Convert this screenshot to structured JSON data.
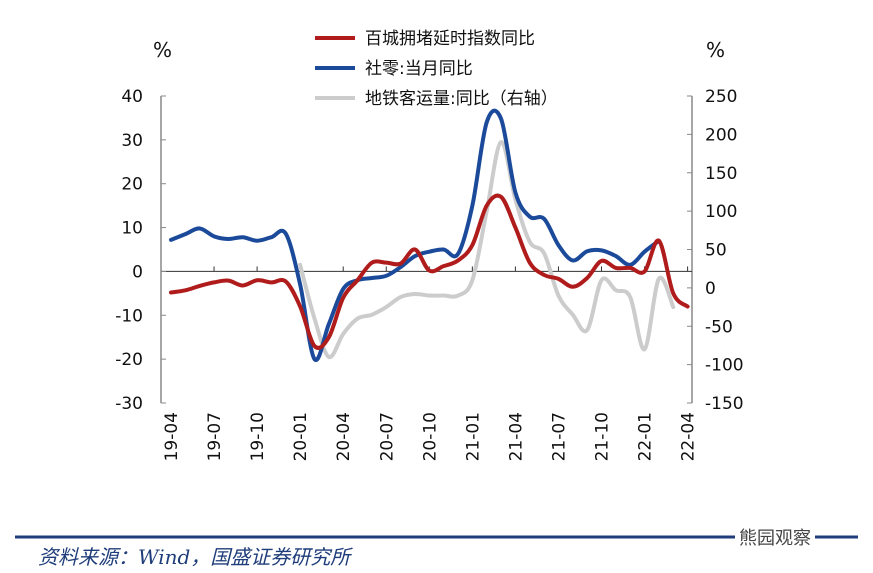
{
  "chart_data": {
    "type": "line",
    "left_unit": "%",
    "right_unit": "%",
    "left_ylim": [
      -30,
      40
    ],
    "left_ticks": [
      40,
      30,
      20,
      10,
      0,
      -10,
      -20,
      -30
    ],
    "right_ylim": [
      -150,
      250
    ],
    "right_ticks": [
      250,
      200,
      150,
      100,
      50,
      0,
      -50,
      -100,
      -150
    ],
    "x_ticks": [
      "19-04",
      "19-07",
      "19-10",
      "20-01",
      "20-04",
      "20-07",
      "20-10",
      "21-01",
      "21-04",
      "21-07",
      "21-10",
      "22-01",
      "22-04"
    ],
    "months_count": 37,
    "series": [
      {
        "name": "百城拥堵延时指数同比",
        "axis": "left",
        "color": "#b01c1c",
        "values": [
          -4.8,
          -4.3,
          -3.3,
          -2.5,
          -2.1,
          -3.2,
          -2,
          -2.5,
          -2.3,
          -8,
          -17,
          -15,
          -6,
          -2,
          2,
          2,
          1.8,
          5,
          0.2,
          1.2,
          2.5,
          6,
          15,
          17,
          10,
          2,
          -0.8,
          -1.7,
          -3.5,
          -1.5,
          2.4,
          0.8,
          0.8,
          0,
          7,
          -5,
          -8
        ]
      },
      {
        "name": "社零:当月同比",
        "axis": "left",
        "color": "#1c4a9a",
        "values": [
          7.2,
          8.5,
          9.8,
          8,
          7.4,
          7.8,
          7,
          7.8,
          8.6,
          -3,
          -20,
          -12,
          -4,
          -2,
          -1.5,
          -1,
          1,
          3.5,
          4.5,
          5,
          4,
          15,
          34,
          34.8,
          18,
          12.5,
          12,
          6,
          2.5,
          4.6,
          4.8,
          3.5,
          1.5,
          4.5,
          7,
          null,
          null
        ]
      },
      {
        "name": "地铁客运量:同比（右轴）",
        "axis": "right",
        "color": "#cccccc",
        "values": [
          null,
          null,
          null,
          null,
          null,
          null,
          null,
          null,
          null,
          30,
          -40,
          -90,
          -60,
          -40,
          -35,
          -25,
          -12,
          -8,
          -10,
          -10,
          -10,
          10,
          100,
          190,
          115,
          60,
          45,
          -10,
          -35,
          -55,
          10,
          -3,
          -12,
          -80,
          12,
          -25,
          null
        ]
      }
    ]
  },
  "source": "资料来源：Wind，国盛证券研究所",
  "watermark": "熊园观察",
  "colors": {
    "rule": "#1f3d7a"
  }
}
